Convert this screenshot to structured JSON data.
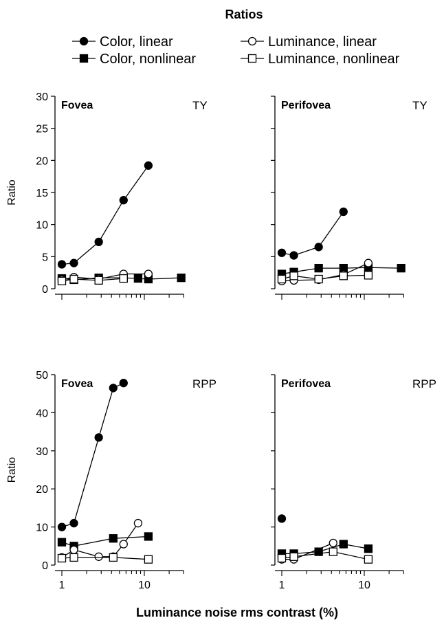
{
  "figure": {
    "title": "Ratios",
    "xlabel": "Luminance noise rms contrast (%)"
  },
  "legend": [
    {
      "label": "Color, linear",
      "marker": "circle",
      "fill": "#000000"
    },
    {
      "label": "Color, nonlinear",
      "marker": "square",
      "fill": "#000000"
    },
    {
      "label": "Luminance, linear",
      "marker": "circle",
      "fill": "#ffffff"
    },
    {
      "label": "Luminance, nonlinear",
      "marker": "square",
      "fill": "#ffffff"
    }
  ],
  "chart_data": [
    {
      "type": "line",
      "panel_label": "Fovea",
      "observer": "TY",
      "ylabel": "Ratio",
      "x_scale": "log",
      "xlim": [
        0.9,
        30
      ],
      "ylim": [
        0,
        30
      ],
      "yticks": [
        0,
        5,
        10,
        15,
        20,
        25,
        30
      ],
      "xticks": [
        1,
        10
      ],
      "series": [
        {
          "name": "Color, linear",
          "x": [
            1,
            1.4,
            2.8,
            5.6,
            11.2
          ],
          "y": [
            3.8,
            4.0,
            7.3,
            13.8,
            19.2
          ]
        },
        {
          "name": "Color, nonlinear",
          "x": [
            1,
            1.4,
            2.8,
            5.6,
            8.4,
            11.2,
            28
          ],
          "y": [
            1.6,
            1.4,
            1.7,
            1.7,
            1.6,
            1.5,
            1.7
          ]
        },
        {
          "name": "Luminance, linear",
          "x": [
            1,
            1.4,
            2.8,
            5.6,
            11.2
          ],
          "y": [
            1.4,
            1.8,
            1.5,
            2.3,
            2.3
          ]
        },
        {
          "name": "Luminance, nonlinear",
          "x": [
            1,
            1.4,
            2.8,
            5.6
          ],
          "y": [
            1.2,
            1.5,
            1.3,
            1.6
          ]
        }
      ]
    },
    {
      "type": "line",
      "panel_label": "Perifovea",
      "observer": "TY",
      "ylabel": "",
      "x_scale": "log",
      "xlim": [
        0.9,
        30
      ],
      "ylim": [
        0,
        30
      ],
      "yticks": [
        0,
        5,
        10,
        15,
        20,
        25,
        30
      ],
      "xticks": [
        1,
        10
      ],
      "series": [
        {
          "name": "Color, linear",
          "x": [
            1,
            1.4,
            2.8,
            5.6
          ],
          "y": [
            5.6,
            5.2,
            6.5,
            12.0
          ]
        },
        {
          "name": "Color, nonlinear",
          "x": [
            1,
            1.4,
            2.8,
            5.6,
            11.2,
            28
          ],
          "y": [
            2.3,
            2.6,
            3.2,
            3.2,
            3.3,
            3.2
          ]
        },
        {
          "name": "Luminance, linear",
          "x": [
            1,
            1.4,
            2.8,
            5.6,
            11.2
          ],
          "y": [
            1.2,
            1.3,
            1.4,
            2.2,
            4.0
          ]
        },
        {
          "name": "Luminance, nonlinear",
          "x": [
            1,
            1.4,
            2.8,
            5.6,
            11.2
          ],
          "y": [
            1.5,
            2.0,
            1.5,
            2.0,
            2.1
          ]
        }
      ]
    },
    {
      "type": "line",
      "panel_label": "Fovea",
      "observer": "RPP",
      "ylabel": "Ratio",
      "x_scale": "log",
      "xlim": [
        0.9,
        30
      ],
      "ylim": [
        0,
        50
      ],
      "yticks": [
        0,
        10,
        20,
        30,
        40,
        50
      ],
      "xticks": [
        1,
        10
      ],
      "xticklabels": [
        "1",
        "10"
      ],
      "series": [
        {
          "name": "Color, linear",
          "x": [
            1,
            1.4,
            2.8,
            4.2,
            5.6
          ],
          "y": [
            10.0,
            11.0,
            33.5,
            46.5,
            47.8
          ]
        },
        {
          "name": "Color, nonlinear",
          "x": [
            1,
            1.4,
            4.2,
            11.2
          ],
          "y": [
            6.0,
            5.0,
            7.0,
            7.5
          ]
        },
        {
          "name": "Luminance, linear",
          "x": [
            1,
            1.4,
            2.8,
            4.2,
            5.6,
            8.4
          ],
          "y": [
            2.0,
            4.0,
            2.2,
            2.2,
            5.5,
            11.0
          ]
        },
        {
          "name": "Luminance, nonlinear",
          "x": [
            1,
            1.4,
            4.2,
            11.2
          ],
          "y": [
            1.8,
            2.0,
            2.0,
            1.5
          ]
        }
      ]
    },
    {
      "type": "line",
      "panel_label": "Perifovea",
      "observer": "RPP",
      "ylabel": "",
      "x_scale": "log",
      "xlim": [
        0.9,
        30
      ],
      "ylim": [
        0,
        50
      ],
      "yticks": [
        0,
        10,
        20,
        30,
        40,
        50
      ],
      "xticks": [
        1,
        10
      ],
      "xticklabels": [
        "1",
        "10"
      ],
      "series": [
        {
          "name": "Color, linear",
          "x": [
            1
          ],
          "y": [
            12.2
          ]
        },
        {
          "name": "Color, nonlinear",
          "x": [
            1,
            1.4,
            2.8,
            5.6,
            11.2
          ],
          "y": [
            3.0,
            3.0,
            3.5,
            5.5,
            4.3
          ]
        },
        {
          "name": "Luminance, linear",
          "x": [
            1,
            1.4,
            4.2
          ],
          "y": [
            1.5,
            1.5,
            5.8
          ]
        },
        {
          "name": "Luminance, nonlinear",
          "x": [
            1,
            1.4,
            4.2,
            11.2
          ],
          "y": [
            1.8,
            2.2,
            3.5,
            1.5
          ]
        }
      ]
    }
  ]
}
